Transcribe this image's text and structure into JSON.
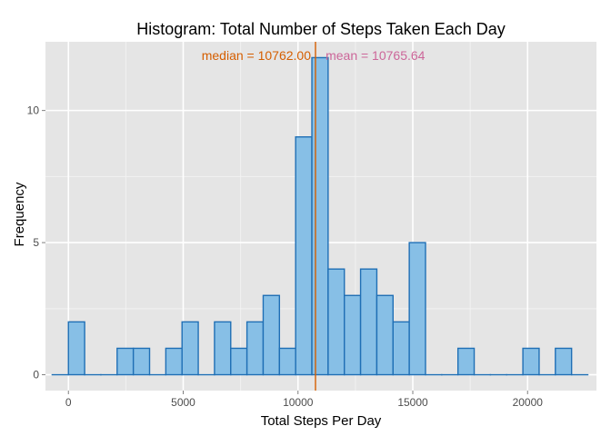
{
  "chart_data": {
    "type": "bar",
    "title": "Histogram: Total Number of Steps Taken Each Day",
    "xlabel": "Total Steps Per Day",
    "ylabel": "Frequency",
    "xlim": [
      -1000,
      23000
    ],
    "ylim": [
      -0.6,
      12.6
    ],
    "xticks": [
      {
        "value": 0,
        "label": "0"
      },
      {
        "value": 5000,
        "label": "5000"
      },
      {
        "value": 10000,
        "label": "10000"
      },
      {
        "value": 15000,
        "label": "15000"
      },
      {
        "value": 20000,
        "label": "20000"
      }
    ],
    "yticks": [
      {
        "value": 0,
        "label": "0"
      },
      {
        "value": 5,
        "label": "5"
      },
      {
        "value": 10,
        "label": "10"
      }
    ],
    "bin_width": 707,
    "bins": [
      {
        "x0": -707,
        "count": 0
      },
      {
        "x0": 0,
        "count": 2
      },
      {
        "x0": 707,
        "count": 0
      },
      {
        "x0": 1414,
        "count": 0
      },
      {
        "x0": 2121,
        "count": 1
      },
      {
        "x0": 2828,
        "count": 1
      },
      {
        "x0": 3535,
        "count": 0
      },
      {
        "x0": 4242,
        "count": 1
      },
      {
        "x0": 4949,
        "count": 2
      },
      {
        "x0": 5656,
        "count": 0
      },
      {
        "x0": 6363,
        "count": 2
      },
      {
        "x0": 7070,
        "count": 1
      },
      {
        "x0": 7777,
        "count": 2
      },
      {
        "x0": 8484,
        "count": 3
      },
      {
        "x0": 9191,
        "count": 1
      },
      {
        "x0": 9898,
        "count": 9
      },
      {
        "x0": 10605,
        "count": 12
      },
      {
        "x0": 11312,
        "count": 4
      },
      {
        "x0": 12019,
        "count": 3
      },
      {
        "x0": 12726,
        "count": 4
      },
      {
        "x0": 13433,
        "count": 3
      },
      {
        "x0": 14140,
        "count": 2
      },
      {
        "x0": 14847,
        "count": 5
      },
      {
        "x0": 15554,
        "count": 0
      },
      {
        "x0": 16261,
        "count": 0
      },
      {
        "x0": 16968,
        "count": 1
      },
      {
        "x0": 17675,
        "count": 0
      },
      {
        "x0": 18382,
        "count": 0
      },
      {
        "x0": 19089,
        "count": 0
      },
      {
        "x0": 19796,
        "count": 1
      },
      {
        "x0": 20503,
        "count": 0
      },
      {
        "x0": 21210,
        "count": 1
      },
      {
        "x0": 21917,
        "count": 0
      }
    ],
    "median": {
      "value": 10762,
      "label": "median = 10762.00",
      "color": "#d55e00"
    },
    "mean": {
      "value": 10765.64,
      "label": "mean = 10765.64",
      "color": "#cc6699"
    },
    "grid": true,
    "colors": {
      "panel_bg": "#e5e5e5",
      "grid_major": "#ffffff",
      "grid_minor": "#f2f2f2",
      "bar_fill": "#87bfe6",
      "bar_stroke": "#1f6fb5",
      "tick_mark": "#7f7f7f"
    }
  }
}
